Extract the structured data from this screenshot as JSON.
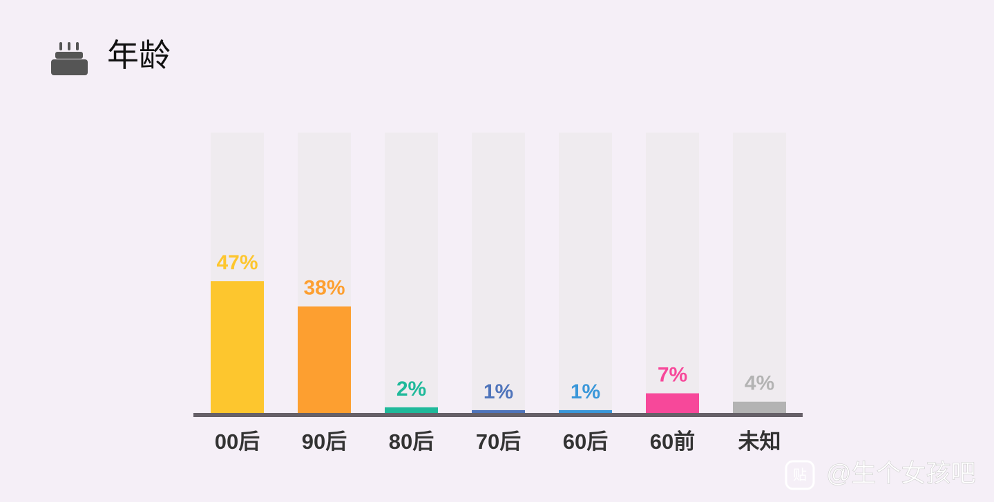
{
  "chart_data": {
    "type": "bar",
    "title": "年龄",
    "categories": [
      "00后",
      "90后",
      "80后",
      "70后",
      "60后",
      "60前",
      "未知"
    ],
    "values": [
      47,
      38,
      2,
      1,
      1,
      7,
      4
    ],
    "value_labels": [
      "47%",
      "38%",
      "2%",
      "1%",
      "1%",
      "7%",
      "4%"
    ],
    "colors": [
      "#fdc62e",
      "#fd9f30",
      "#1fb99a",
      "#4f74bb",
      "#3a97d9",
      "#f7489a",
      "#b3b3b3"
    ],
    "ylim": [
      0,
      100
    ]
  },
  "watermark": "@生个女孩吧"
}
